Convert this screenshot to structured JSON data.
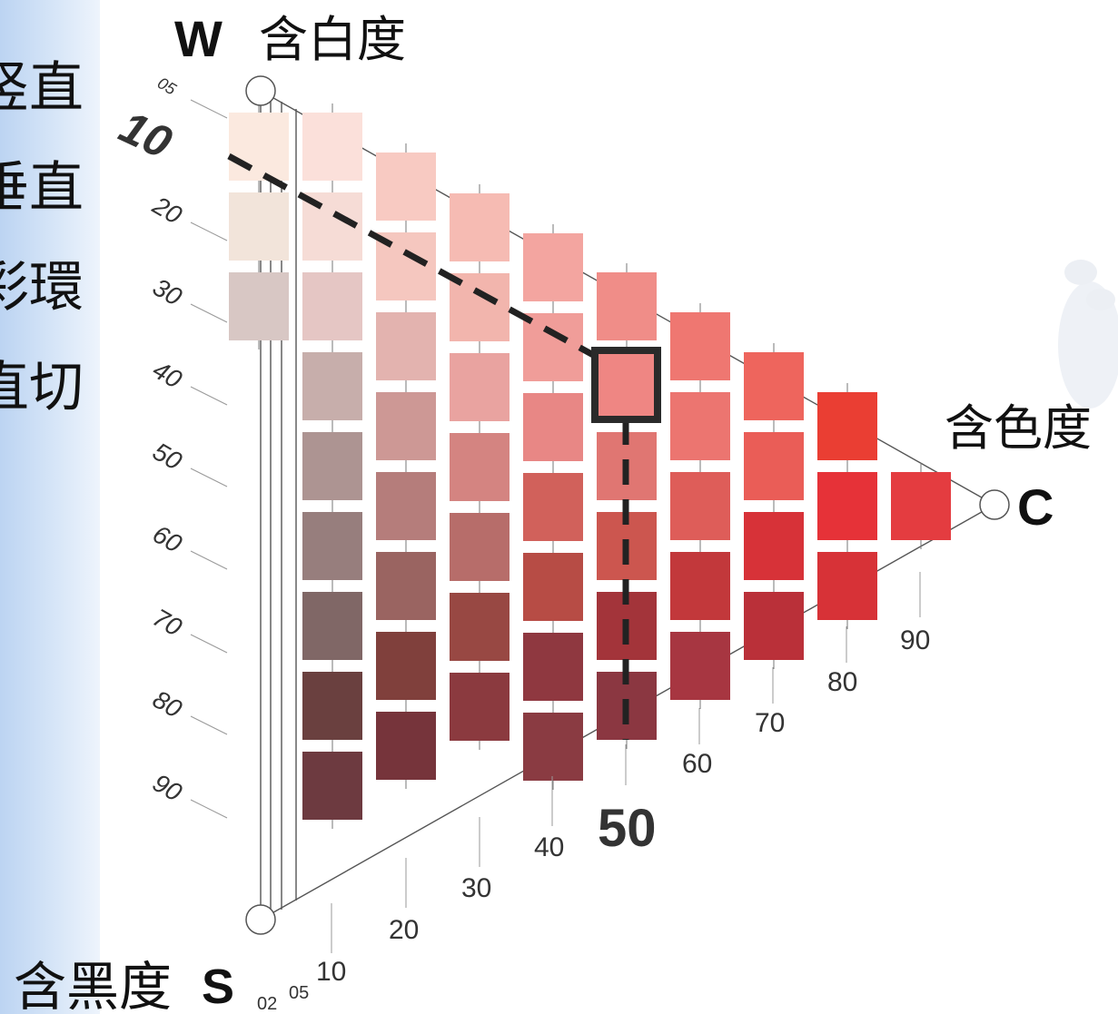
{
  "side_labels": [
    "竖直",
    "垂直",
    "彩環",
    "直切"
  ],
  "titles": {
    "w_letter": "W",
    "w_label": "含白度",
    "c_letter": "C",
    "c_label": "含色度",
    "s_letter": "S",
    "s_label": "含黑度"
  },
  "axis_left_ticks": [
    "05",
    "10",
    "20",
    "30",
    "40",
    "50",
    "60",
    "70",
    "80",
    "90"
  ],
  "axis_bottom_ticks": [
    "02",
    "05",
    "10",
    "20",
    "30",
    "40",
    "50",
    "60",
    "70",
    "80",
    "90"
  ],
  "highlight": {
    "whiteness": "10",
    "chromaticness": "50"
  },
  "swatch_columns": [
    [
      "#fbe9df",
      "#f2e4da",
      "#d8c7c4"
    ],
    [
      "#fbe0da",
      "#f6dcd6",
      "#e5c6c4",
      "#c7aeab",
      "#ad9492",
      "#977e7d",
      "#806766",
      "#6a403f",
      "#6d3a40"
    ],
    [
      "#f8cac2",
      "#f5c7bf",
      "#e3b3af",
      "#cd9895",
      "#b57d7b",
      "#9a6461",
      "#80403c",
      "#76343b"
    ],
    [
      "#f6bbb3",
      "#f2b5ad",
      "#e9a3a0",
      "#d48481",
      "#b76d6a",
      "#984843",
      "#8b3a3f"
    ],
    [
      "#f3a5a0",
      "#f09d99",
      "#e88785",
      "#d1615b",
      "#b74c45",
      "#8f3840",
      "#8a3b42"
    ],
    [
      "#f08d88",
      "#ef8683",
      "#e07672",
      "#cc564f",
      "#a3343a",
      "#8b3741"
    ],
    [
      "#ef7771",
      "#ec7570",
      "#de5d59",
      "#c2383b",
      "#a73641"
    ],
    [
      "#ee655d",
      "#ea5d57",
      "#d73238",
      "#ba3039"
    ],
    [
      "#ea3e33",
      "#e63238",
      "#d73237"
    ],
    [
      "#e43c40"
    ]
  ]
}
